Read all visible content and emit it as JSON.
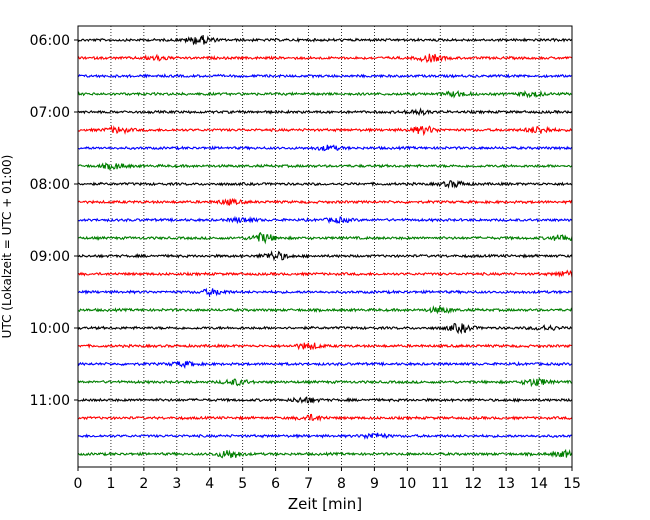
{
  "chart_data": {
    "type": "line",
    "title": "",
    "xlabel": "Zeit  [min]",
    "ylabel": "UTC (Lokalzeit = UTC + 01:00)",
    "xlim": [
      0,
      15
    ],
    "x_ticks": [
      "0",
      "1",
      "2",
      "3",
      "4",
      "5",
      "6",
      "7",
      "8",
      "9",
      "10",
      "11",
      "12",
      "13",
      "14",
      "15"
    ],
    "y_tick_labels": [
      "06:00",
      "07:00",
      "08:00",
      "09:00",
      "10:00",
      "11:00"
    ],
    "grid": "vertical dotted",
    "legend": "none",
    "trace_interval_minutes": 15,
    "start_time": "06:00",
    "trace_count": 24,
    "trace_colors": [
      "#000000",
      "#ff0000",
      "#0000ff",
      "#007f00"
    ],
    "series": [
      {
        "start": "06:00",
        "color": "#000000",
        "bursts": [
          {
            "t": 3.7,
            "amp": 1.0
          }
        ]
      },
      {
        "start": "06:15",
        "color": "#ff0000",
        "bursts": [
          {
            "t": 2.4,
            "amp": 0.5
          },
          {
            "t": 10.7,
            "amp": 0.8
          }
        ]
      },
      {
        "start": "06:30",
        "color": "#0000ff",
        "bursts": []
      },
      {
        "start": "06:45",
        "color": "#007f00",
        "bursts": [
          {
            "t": 11.5,
            "amp": 0.5
          },
          {
            "t": 13.8,
            "amp": 0.5
          }
        ]
      },
      {
        "start": "07:00",
        "color": "#000000",
        "bursts": [
          {
            "t": 10.3,
            "amp": 0.5
          }
        ]
      },
      {
        "start": "07:15",
        "color": "#ff0000",
        "bursts": [
          {
            "t": 1.2,
            "amp": 0.6
          },
          {
            "t": 10.5,
            "amp": 0.8
          },
          {
            "t": 14.0,
            "amp": 0.8
          }
        ]
      },
      {
        "start": "07:30",
        "color": "#0000ff",
        "bursts": [
          {
            "t": 7.6,
            "amp": 0.5
          }
        ]
      },
      {
        "start": "07:45",
        "color": "#007f00",
        "bursts": [
          {
            "t": 1.1,
            "amp": 0.6
          }
        ]
      },
      {
        "start": "08:00",
        "color": "#000000",
        "bursts": [
          {
            "t": 11.4,
            "amp": 0.6
          }
        ]
      },
      {
        "start": "08:15",
        "color": "#ff0000",
        "bursts": [
          {
            "t": 4.6,
            "amp": 0.5
          }
        ]
      },
      {
        "start": "08:30",
        "color": "#0000ff",
        "bursts": [
          {
            "t": 5.0,
            "amp": 0.5
          },
          {
            "t": 7.9,
            "amp": 0.5
          }
        ]
      },
      {
        "start": "08:45",
        "color": "#007f00",
        "bursts": [
          {
            "t": 5.6,
            "amp": 1.0
          },
          {
            "t": 14.7,
            "amp": 0.6
          }
        ]
      },
      {
        "start": "09:00",
        "color": "#000000",
        "bursts": [
          {
            "t": 6.0,
            "amp": 0.9
          }
        ]
      },
      {
        "start": "09:15",
        "color": "#ff0000",
        "bursts": [
          {
            "t": 14.9,
            "amp": 0.6
          }
        ]
      },
      {
        "start": "09:30",
        "color": "#0000ff",
        "bursts": [
          {
            "t": 4.1,
            "amp": 0.6
          }
        ]
      },
      {
        "start": "09:45",
        "color": "#007f00",
        "bursts": [
          {
            "t": 11.0,
            "amp": 0.6
          }
        ]
      },
      {
        "start": "10:00",
        "color": "#000000",
        "bursts": [
          {
            "t": 11.6,
            "amp": 0.9
          },
          {
            "t": 14.2,
            "amp": 0.5
          }
        ]
      },
      {
        "start": "10:15",
        "color": "#ff0000",
        "bursts": [
          {
            "t": 7.0,
            "amp": 0.7
          }
        ]
      },
      {
        "start": "10:30",
        "color": "#0000ff",
        "bursts": [
          {
            "t": 3.2,
            "amp": 0.5
          }
        ]
      },
      {
        "start": "10:45",
        "color": "#007f00",
        "bursts": [
          {
            "t": 4.8,
            "amp": 0.6
          },
          {
            "t": 13.9,
            "amp": 0.8
          }
        ]
      },
      {
        "start": "11:00",
        "color": "#000000",
        "bursts": [
          {
            "t": 6.9,
            "amp": 0.6
          }
        ]
      },
      {
        "start": "11:15",
        "color": "#ff0000",
        "bursts": [
          {
            "t": 7.1,
            "amp": 0.6
          }
        ]
      },
      {
        "start": "11:30",
        "color": "#0000ff",
        "bursts": [
          {
            "t": 9.0,
            "amp": 0.6
          }
        ]
      },
      {
        "start": "11:45",
        "color": "#007f00",
        "bursts": [
          {
            "t": 4.6,
            "amp": 0.9
          },
          {
            "t": 14.8,
            "amp": 0.6
          }
        ]
      }
    ]
  }
}
